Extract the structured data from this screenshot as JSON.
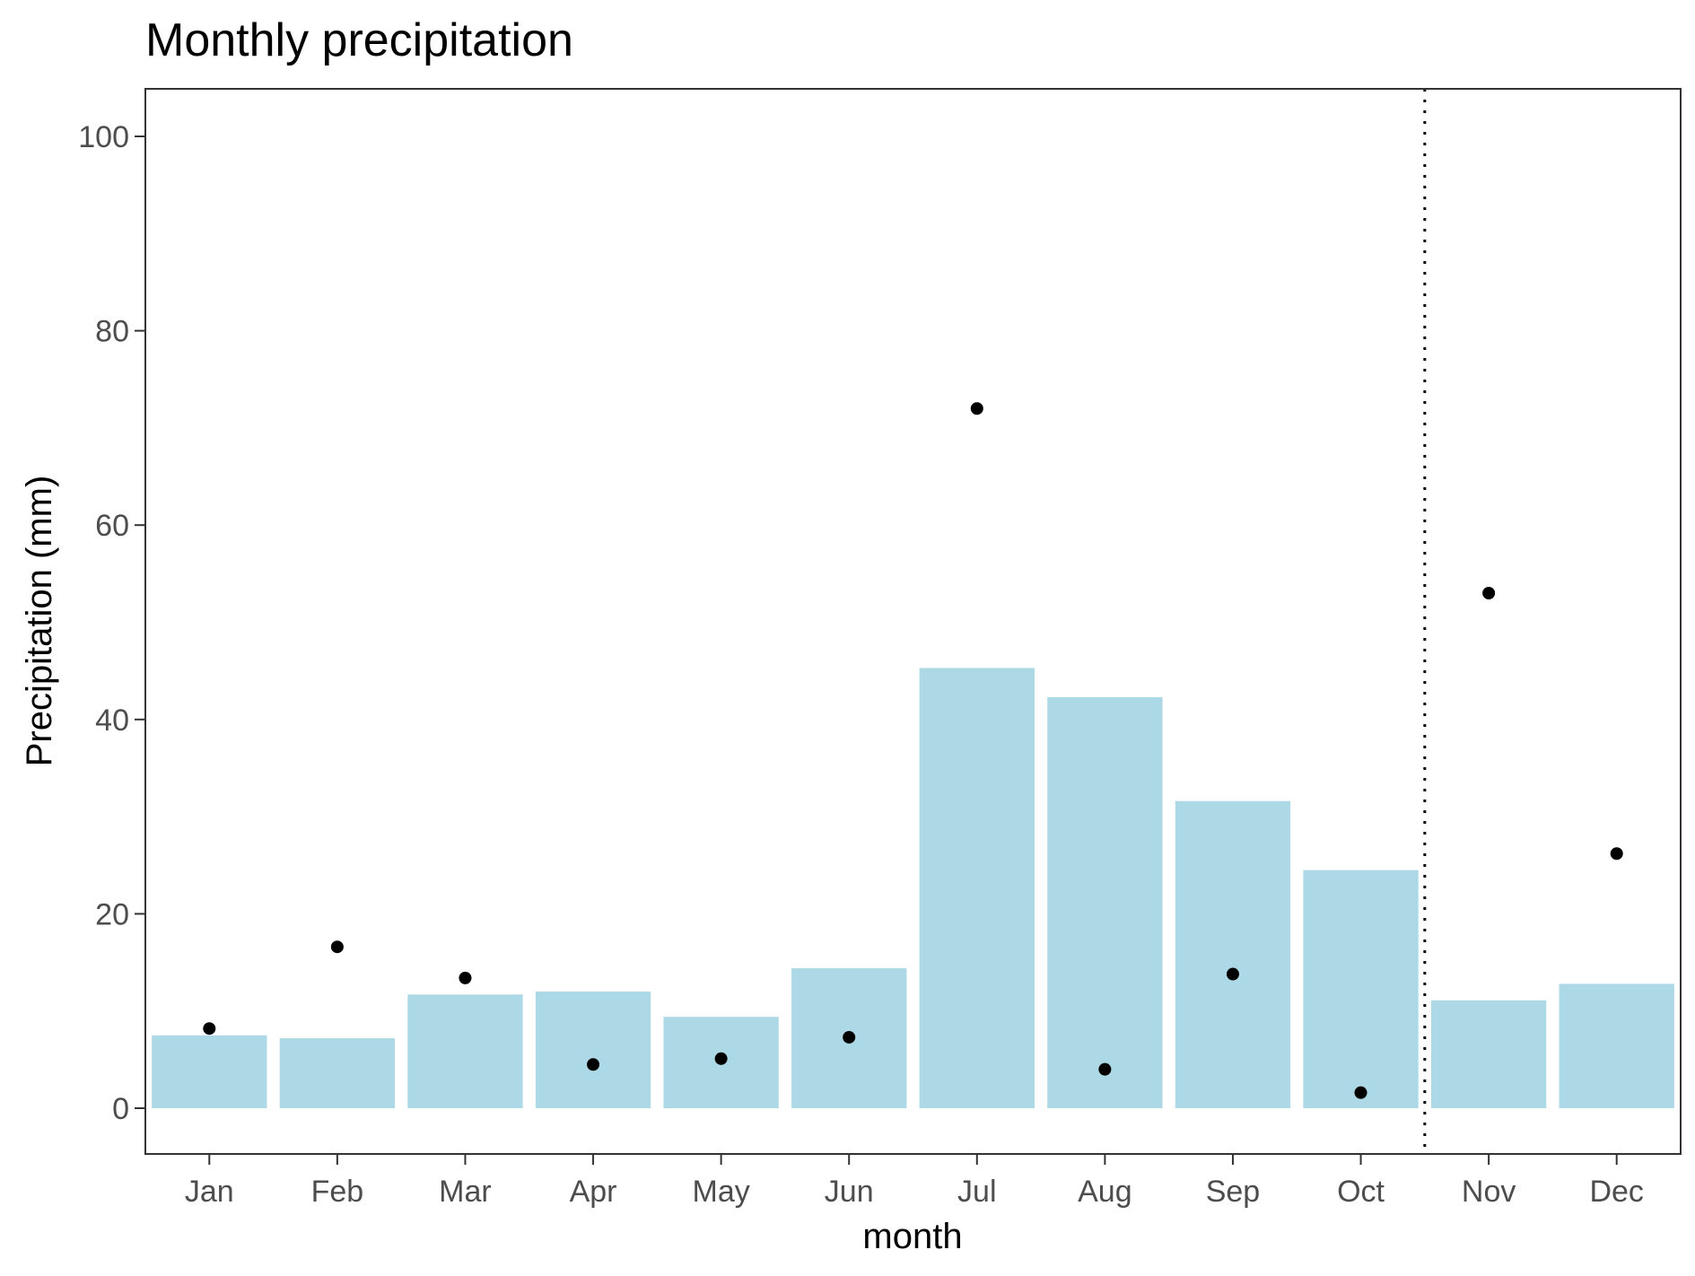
{
  "chart_data": {
    "type": "bar",
    "title": "Monthly precipitation",
    "xlabel": "month",
    "ylabel": "Precipitation (mm)",
    "categories": [
      "Jan",
      "Feb",
      "Mar",
      "Apr",
      "May",
      "Jun",
      "Jul",
      "Aug",
      "Sep",
      "Oct",
      "Nov",
      "Dec"
    ],
    "series": [
      {
        "type": "bar",
        "values": [
          7.5,
          7.2,
          11.7,
          12.0,
          9.4,
          14.4,
          45.3,
          42.3,
          31.6,
          24.5,
          11.1,
          12.8
        ],
        "color": "#add8e6"
      },
      {
        "type": "point",
        "values": [
          8.2,
          16.6,
          13.4,
          4.5,
          5.1,
          7.3,
          72.0,
          4.0,
          13.8,
          1.6,
          53.0,
          26.2
        ],
        "color": "#000000"
      }
    ],
    "ylim": [
      0,
      105
    ],
    "yticks": [
      0,
      20,
      40,
      60,
      80,
      100
    ],
    "divider_after_category": "Oct",
    "grid": false,
    "legend": "none"
  }
}
